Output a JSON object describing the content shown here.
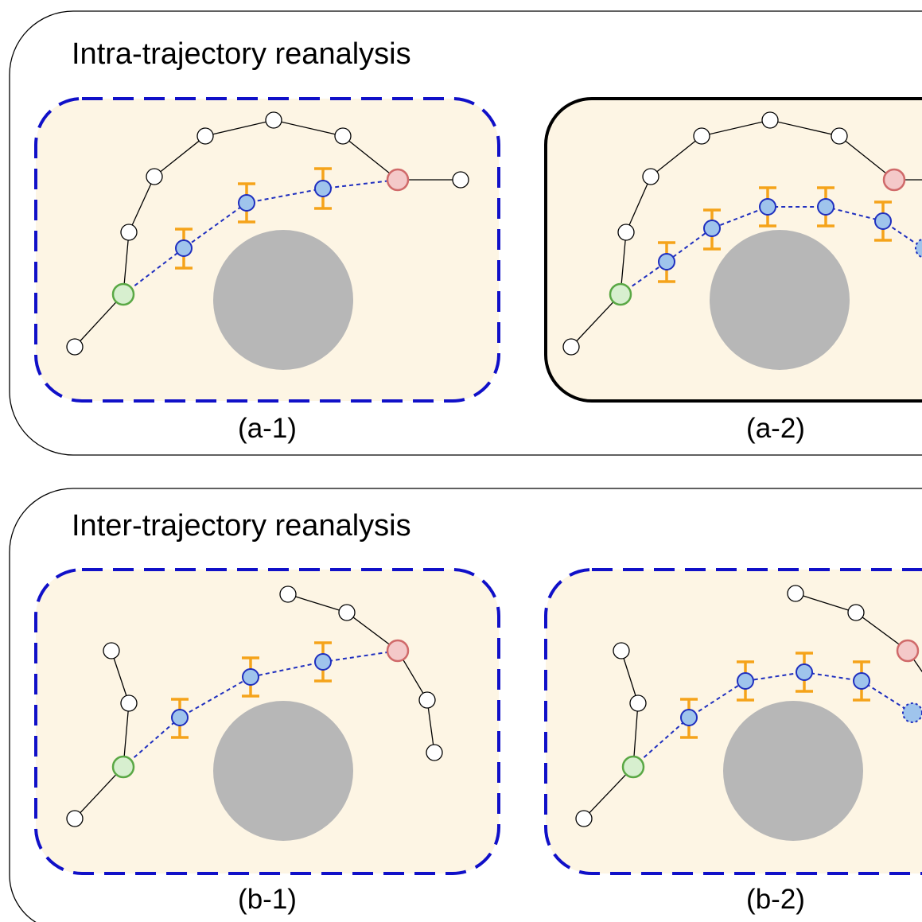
{
  "sections": [
    {
      "title": "Intra-trajectory reanalysis",
      "panels": [
        {
          "caption": "(a-1)",
          "border": "dashed-blue"
        },
        {
          "caption": "(a-2)",
          "border": "solid-black"
        }
      ]
    },
    {
      "title": "Inter-trajectory reanalysis",
      "panels": [
        {
          "caption": "(b-1)",
          "border": "dashed-blue"
        },
        {
          "caption": "(b-2)",
          "border": "dashed-blue"
        }
      ]
    }
  ],
  "colors": {
    "panel_fill": "#fdf5e4",
    "dashed_border": "#1010c8",
    "obstacle": "#b7b7b7",
    "start_node_fill": "#d7efcf",
    "start_node_stroke": "#5aa845",
    "goal_node_fill": "#f4c9c9",
    "goal_node_stroke": "#d06a6a",
    "blue_node_fill": "#9fc4ec",
    "blue_node_stroke": "#1f2fbf",
    "uncertainty_bar": "#f5a31a"
  }
}
